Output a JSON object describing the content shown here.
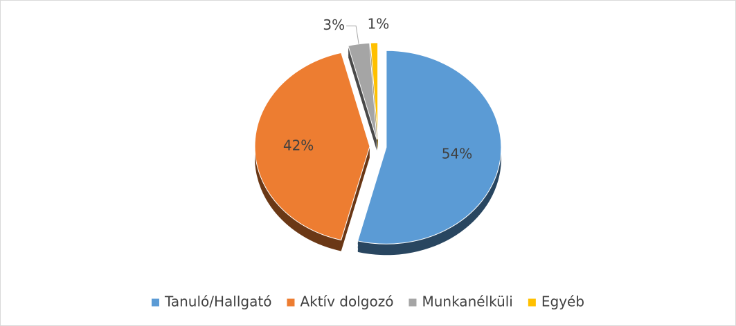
{
  "chart_data": {
    "type": "pie",
    "categories": [
      "Tanuló/Hallgató",
      "Aktív dolgozó",
      "Munkanélküli",
      "Egyéb"
    ],
    "values": [
      54,
      42,
      3,
      1
    ],
    "value_labels": [
      "54%",
      "42%",
      "3%",
      "1%"
    ],
    "colors": [
      "#5b9bd5",
      "#ed7d31",
      "#a5a5a5",
      "#ffc000"
    ],
    "legend": "bottom"
  }
}
